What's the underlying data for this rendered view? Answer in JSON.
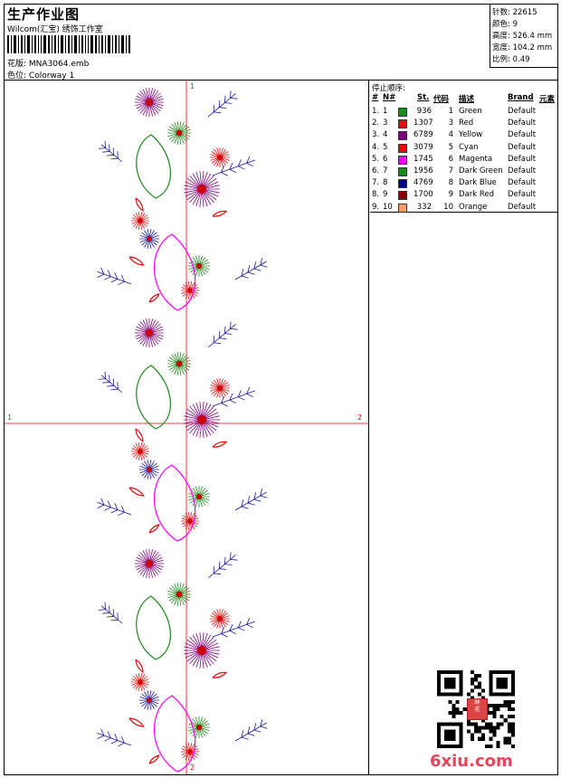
{
  "header": {
    "title": "生产作业图",
    "company": "Wilcom(汇宝) 绣饰工作室",
    "design_label": "花版:",
    "design_file": "MNA3064.emb",
    "colorway_label": "色位:",
    "colorway": "Colorway 1"
  },
  "stats": {
    "stitches_label": "针数:",
    "stitches": "22615",
    "colors_label": "颜色:",
    "colors": "9",
    "height_label": "高度:",
    "height": "526.4 mm",
    "width_label": "宽度:",
    "width": "104.2 mm",
    "scale_label": "比例:",
    "scale": "0.49"
  },
  "stop_sequence": {
    "title": "停止顺序:",
    "headers": {
      "num": "#",
      "no": "N#",
      "st": "St.",
      "code": "代码",
      "desc": "描述",
      "brand": "Brand",
      "element": "元素"
    },
    "rows": [
      {
        "n": "1.",
        "no": "1",
        "color": "#1a8a1a",
        "st": "936",
        "code": "1",
        "desc": "Green",
        "brand": "Default"
      },
      {
        "n": "2.",
        "no": "3",
        "color": "#e01010",
        "st": "1307",
        "code": "3",
        "desc": "Red",
        "brand": "Default"
      },
      {
        "n": "3.",
        "no": "4",
        "color": "#800080",
        "st": "6789",
        "code": "4",
        "desc": "Yellow",
        "brand": "Default"
      },
      {
        "n": "4.",
        "no": "5",
        "color": "#e01010",
        "st": "3079",
        "code": "5",
        "desc": "Cyan",
        "brand": "Default"
      },
      {
        "n": "5.",
        "no": "6",
        "color": "#ff00ff",
        "st": "1745",
        "code": "6",
        "desc": "Magenta",
        "brand": "Default"
      },
      {
        "n": "6.",
        "no": "7",
        "color": "#1a8a1a",
        "st": "1956",
        "code": "7",
        "desc": "Dark Green",
        "brand": "Default"
      },
      {
        "n": "7.",
        "no": "8",
        "color": "#00008b",
        "st": "4769",
        "code": "8",
        "desc": "Dark Blue",
        "brand": "Default"
      },
      {
        "n": "8.",
        "no": "9",
        "color": "#8b0000",
        "st": "1700",
        "code": "9",
        "desc": "Dark Red",
        "brand": "Default"
      },
      {
        "n": "9.",
        "no": "10",
        "color": "#ff9966",
        "st": "332",
        "code": "10",
        "desc": "Orange",
        "brand": "Default"
      }
    ]
  },
  "axes": {
    "v_top": "1",
    "v_bottom": "2",
    "h_left": "1",
    "h_right": "2"
  },
  "watermark": "6xiu.com",
  "stamp_text": "绣花图库"
}
